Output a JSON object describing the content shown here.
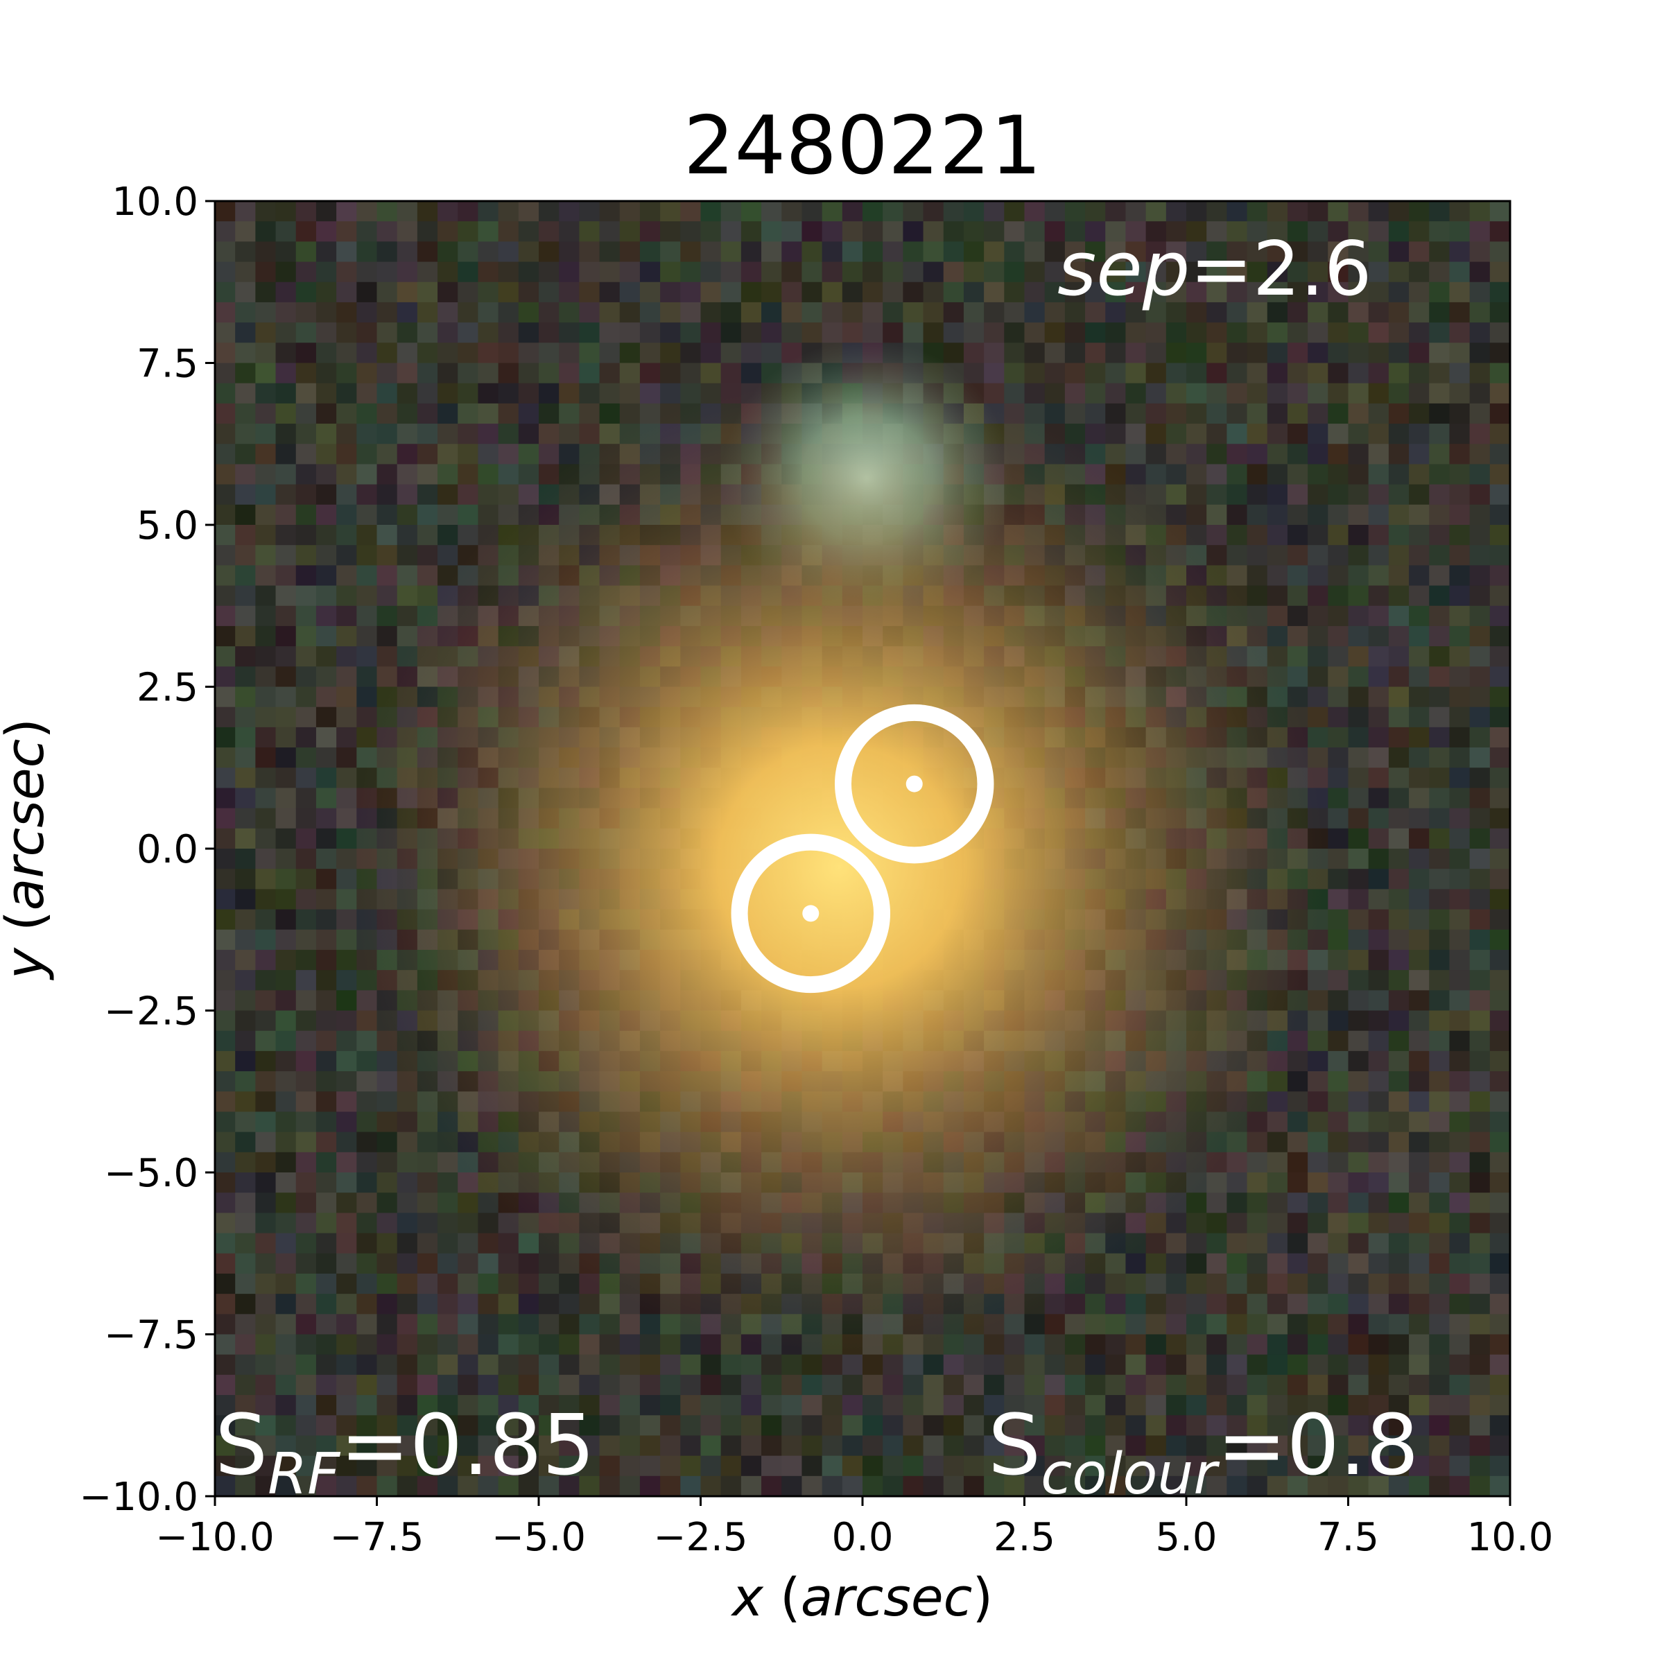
{
  "chart_data": {
    "type": "image",
    "title": "2480221",
    "xlabel_prefix": "x",
    "xlabel_unit": "arcsec",
    "ylabel_prefix": "y",
    "ylabel_unit": "arcsec",
    "xlim": [
      -10.0,
      10.0
    ],
    "ylim": [
      -10.0,
      10.0
    ],
    "xticks": [
      -10.0,
      -7.5,
      -5.0,
      -2.5,
      0.0,
      2.5,
      5.0,
      7.5,
      10.0
    ],
    "yticks": [
      -10.0,
      -7.5,
      -5.0,
      -2.5,
      0.0,
      2.5,
      5.0,
      7.5,
      10.0
    ],
    "xtick_labels": [
      "−10.0",
      "−7.5",
      "−5.0",
      "−2.5",
      "0.0",
      "2.5",
      "5.0",
      "7.5",
      "10.0"
    ],
    "ytick_labels": [
      "−10.0",
      "−7.5",
      "−5.0",
      "−2.5",
      "0.0",
      "2.5",
      "5.0",
      "7.5",
      "10.0"
    ],
    "grid": false,
    "markers": [
      {
        "x": 0.8,
        "y": 1.0,
        "radius": 1.1
      },
      {
        "x": -0.8,
        "y": -1.0,
        "radius": 1.1
      }
    ],
    "annotations": {
      "sep": {
        "label": "sep",
        "value": "=2.6"
      },
      "s_rf": {
        "symbol": "S",
        "subscript": "RF",
        "value": "=0.85"
      },
      "s_colour": {
        "symbol": "S",
        "subscript": "colour",
        "value": "=0.8"
      }
    },
    "marker_color": "#ffffff",
    "core_color": "#ffe27a",
    "companion_color": "#a9d6b6",
    "background_color": "#3a3128"
  }
}
